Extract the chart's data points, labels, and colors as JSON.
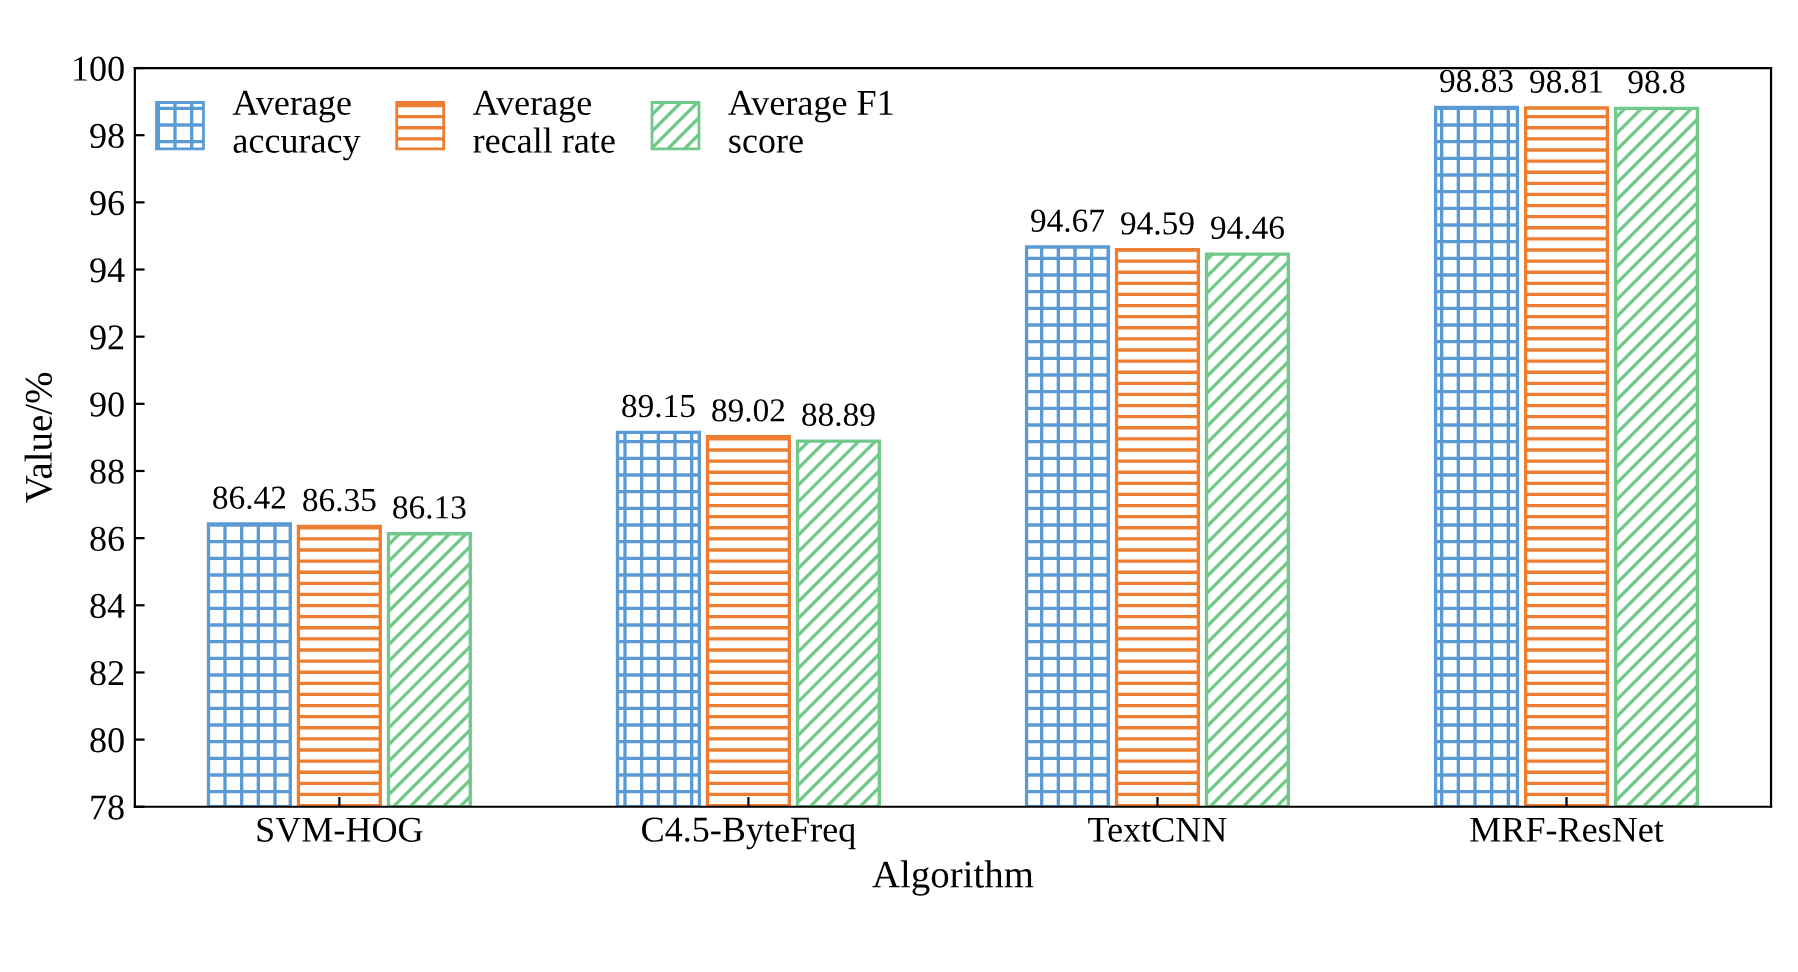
{
  "chart_data": {
    "type": "bar",
    "xlabel": "Algorithm",
    "ylabel": "Value/%",
    "categories": [
      "SVM-HOG",
      "C4.5-ByteFreq",
      "TextCNN",
      "MRF-ResNet"
    ],
    "series": [
      {
        "name": "Average\naccuracy",
        "color": "#5b9bd5",
        "values": [
          86.42,
          89.15,
          94.67,
          98.83
        ]
      },
      {
        "name": "Average\nrecall rate",
        "color": "#ed7d31",
        "values": [
          86.35,
          89.02,
          94.59,
          98.81
        ]
      },
      {
        "name": "Average F1\nscore",
        "color": "#70c98a",
        "values": [
          86.13,
          88.89,
          94.46,
          98.8
        ]
      }
    ],
    "ylim": [
      78,
      100
    ],
    "yticks": [
      78,
      80,
      82,
      84,
      86,
      88,
      90,
      92,
      94,
      96,
      98,
      100
    ],
    "data_labels": true,
    "legend": "top left",
    "grid": false
  }
}
